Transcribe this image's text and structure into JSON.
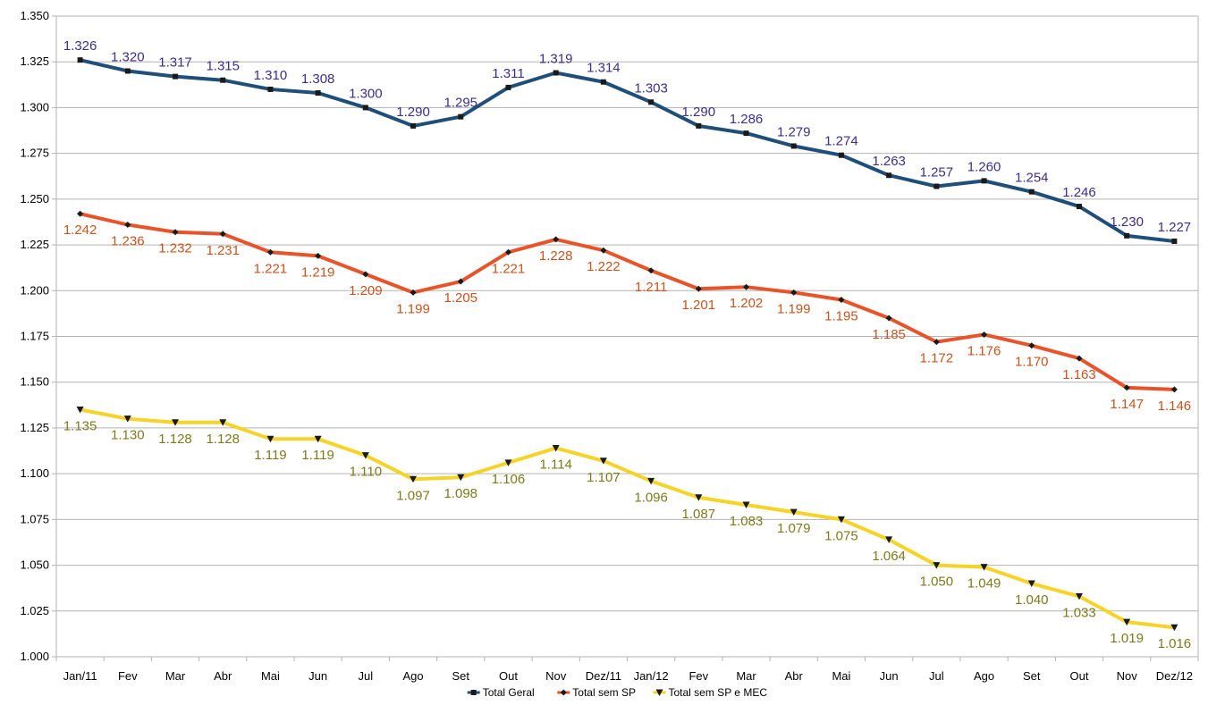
{
  "chart_data": {
    "type": "line",
    "title": "",
    "xlabel": "",
    "ylabel": "",
    "ylim": [
      1.0,
      1.35
    ],
    "grid": true,
    "legend_position": "bottom",
    "categories": [
      "Jan/11",
      "Fev",
      "Mar",
      "Abr",
      "Mai",
      "Jun",
      "Jul",
      "Ago",
      "Set",
      "Out",
      "Nov",
      "Dez/11",
      "Jan/12",
      "Fev",
      "Mar",
      "Abr",
      "Mai",
      "Jun",
      "Jul",
      "Ago",
      "Set",
      "Out",
      "Nov",
      "Dez/12"
    ],
    "y_ticks": [
      "1.000",
      "1.025",
      "1.050",
      "1.075",
      "1.100",
      "1.125",
      "1.150",
      "1.175",
      "1.200",
      "1.225",
      "1.250",
      "1.275",
      "1.300",
      "1.325",
      "1.350"
    ],
    "series": [
      {
        "name": "Total Geral",
        "color": "#1f4e79",
        "label_color": "#3b2e8c",
        "marker": "square",
        "values": [
          1.326,
          1.32,
          1.317,
          1.315,
          1.31,
          1.308,
          1.3,
          1.29,
          1.295,
          1.311,
          1.319,
          1.314,
          1.303,
          1.29,
          1.286,
          1.279,
          1.274,
          1.263,
          1.257,
          1.26,
          1.254,
          1.246,
          1.23,
          1.227
        ],
        "labels": [
          "1.326",
          "1.320",
          "1.317",
          "1.315",
          "1.310",
          "1.308",
          "1.300",
          "1.290",
          "1.295",
          "1.311",
          "1.319",
          "1.314",
          "1.303",
          "1.290",
          "1.286",
          "1.279",
          "1.274",
          "1.263",
          "1.257",
          "1.260",
          "1.254",
          "1.246",
          "1.230",
          "1.227"
        ]
      },
      {
        "name": "Total sem SP",
        "color": "#e8532a",
        "label_color": "#c8531e",
        "marker": "diamond",
        "values": [
          1.242,
          1.236,
          1.232,
          1.231,
          1.221,
          1.219,
          1.209,
          1.199,
          1.205,
          1.221,
          1.228,
          1.222,
          1.211,
          1.201,
          1.202,
          1.199,
          1.195,
          1.185,
          1.172,
          1.176,
          1.17,
          1.163,
          1.147,
          1.146
        ],
        "labels": [
          "1.242",
          "1.236",
          "1.232",
          "1.231",
          "1.221",
          "1.219",
          "1.209",
          "1.199",
          "1.205",
          "1.221",
          "1.228",
          "1.222",
          "1.211",
          "1.201",
          "1.202",
          "1.199",
          "1.195",
          "1.185",
          "1.172",
          "1.176",
          "1.170",
          "1.163",
          "1.147",
          "1.146"
        ]
      },
      {
        "name": "Total sem SP e MEC",
        "color": "#f5d327",
        "label_color": "#7d7a1e",
        "marker": "triangle",
        "values": [
          1.135,
          1.13,
          1.128,
          1.128,
          1.119,
          1.119,
          1.11,
          1.097,
          1.098,
          1.106,
          1.114,
          1.107,
          1.096,
          1.087,
          1.083,
          1.079,
          1.075,
          1.064,
          1.05,
          1.049,
          1.04,
          1.033,
          1.019,
          1.016
        ],
        "labels": [
          "1.135",
          "1.130",
          "1.128",
          "1.128",
          "1.119",
          "1.119",
          "1.110",
          "1.097",
          "1.098",
          "1.106",
          "1.114",
          "1.107",
          "1.096",
          "1.087",
          "1.083",
          "1.079",
          "1.075",
          "1.064",
          "1.050",
          "1.049",
          "1.040",
          "1.033",
          "1.019",
          "1.016"
        ]
      }
    ]
  }
}
